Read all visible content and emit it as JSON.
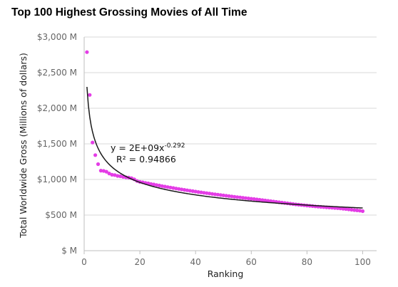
{
  "chart_data": {
    "type": "scatter",
    "title": "Top 100 Highest Grossing Movies of All Time",
    "xlabel": "Ranking",
    "ylabel": "Total Worldwide Gross (Millions of dollars)",
    "xlim": [
      0,
      105
    ],
    "ylim": [
      0,
      3000
    ],
    "x_ticks": [
      0,
      20,
      40,
      60,
      80,
      100
    ],
    "y_ticks": [
      0,
      500,
      1000,
      1500,
      2000,
      2500,
      3000
    ],
    "x_tick_labels": [
      "0",
      "20",
      "40",
      "60",
      "80",
      "100"
    ],
    "y_tick_labels": [
      "$ M",
      "$500 M",
      "$1,000 M",
      "$1,500 M",
      "$2,000 M",
      "$2,500 M",
      "$3,000 M"
    ],
    "grid": "horizontal",
    "marker_color": "#e43de6",
    "trendline_color": "#1a1a1a",
    "trendline": {
      "type": "power",
      "coefficient": 2300,
      "exponent": -0.292,
      "equation_prefix": "y = 2E+09x",
      "equation_exponent": "-0.292",
      "r_squared_label": "R² = 0.94866"
    },
    "series": [
      {
        "x": [
          1,
          2,
          3,
          4,
          5,
          6,
          7,
          8,
          9,
          10,
          11,
          12,
          13,
          14,
          15,
          16,
          17,
          18,
          19,
          20,
          21,
          22,
          23,
          24,
          25,
          26,
          27,
          28,
          29,
          30,
          31,
          32,
          33,
          34,
          35,
          36,
          37,
          38,
          39,
          40,
          41,
          42,
          43,
          44,
          45,
          46,
          47,
          48,
          49,
          50,
          51,
          52,
          53,
          54,
          55,
          56,
          57,
          58,
          59,
          60,
          61,
          62,
          63,
          64,
          65,
          66,
          67,
          68,
          69,
          70,
          71,
          72,
          73,
          74,
          75,
          76,
          77,
          78,
          79,
          80,
          81,
          82,
          83,
          84,
          85,
          86,
          87,
          88,
          89,
          90,
          91,
          92,
          93,
          94,
          95,
          96,
          97,
          98,
          99,
          100
        ],
        "values": [
          2788,
          2187,
          1519,
          1342,
          1215,
          1124,
          1120,
          1109,
          1084,
          1066,
          1062,
          1050,
          1045,
          1036,
          1030,
          1026,
          1018,
          1002,
          978,
          966,
          960,
          952,
          945,
          937,
          930,
          922,
          915,
          907,
          900,
          893,
          887,
          880,
          873,
          867,
          860,
          854,
          848,
          842,
          836,
          830,
          824,
          819,
          813,
          808,
          803,
          797,
          792,
          787,
          782,
          777,
          772,
          767,
          762,
          757,
          752,
          748,
          743,
          738,
          734,
          729,
          725,
          720,
          715,
          710,
          705,
          700,
          695,
          690,
          685,
          680,
          675,
          670,
          665,
          660,
          655,
          650,
          646,
          642,
          638,
          634,
          630,
          626,
          622,
          618,
          615,
          612,
          609,
          606,
          603,
          600,
          597,
          593,
          589,
          585,
          580,
          575,
          570,
          566,
          562,
          555
        ]
      }
    ]
  }
}
